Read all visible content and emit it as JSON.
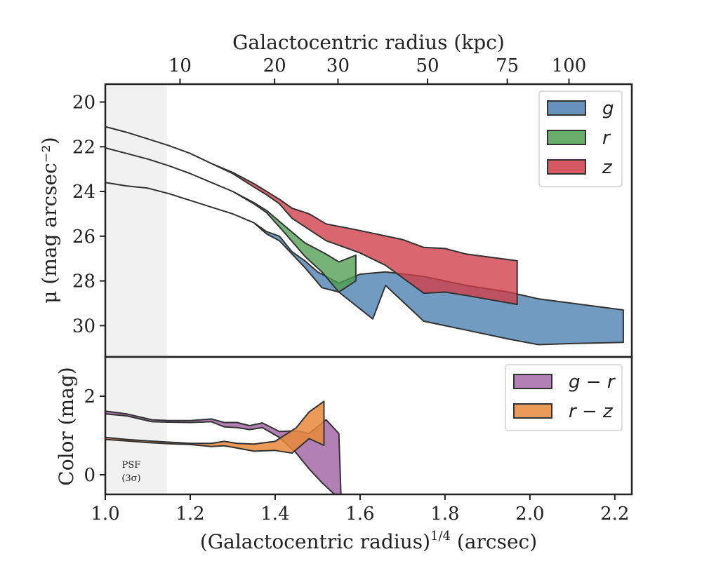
{
  "chart_data": [
    {
      "type": "area",
      "top_axis": {
        "label": "Galactocentric radius (kpc)",
        "ticks": [
          10,
          20,
          30,
          50,
          75,
          100
        ],
        "tick_labels": [
          "10",
          "20",
          "30",
          "50",
          "75",
          "100"
        ]
      },
      "xlim": [
        1.0,
        2.24
      ],
      "ylabel": "μ (mag arcsec⁻²)",
      "ylim": [
        31.4,
        19.2
      ],
      "y_inverted": true,
      "yticks": [
        20,
        22,
        24,
        26,
        28,
        30
      ],
      "shaded_region": {
        "x": [
          1.0,
          1.145
        ],
        "color": "#f1f1f1"
      },
      "legend": {
        "placement": "top-right"
      },
      "series": [
        {
          "name": "g",
          "color": "#4a7fb0",
          "upper": [
            [
              1.0,
              23.6
            ],
            [
              1.05,
              23.75
            ],
            [
              1.1,
              23.85
            ],
            [
              1.15,
              24.1
            ],
            [
              1.2,
              24.4
            ],
            [
              1.25,
              24.7
            ],
            [
              1.3,
              25.0
            ],
            [
              1.35,
              25.4
            ],
            [
              1.38,
              25.8
            ],
            [
              1.41,
              26.0
            ],
            [
              1.44,
              26.7
            ],
            [
              1.47,
              27.1
            ],
            [
              1.5,
              27.6
            ],
            [
              1.55,
              28.1
            ],
            [
              1.6,
              27.7
            ],
            [
              1.66,
              27.6
            ],
            [
              1.75,
              27.8
            ],
            [
              1.85,
              28.2
            ],
            [
              1.95,
              28.5
            ],
            [
              2.02,
              28.8
            ],
            [
              2.1,
              29.0
            ],
            [
              2.22,
              29.3
            ]
          ],
          "lower": [
            [
              1.0,
              23.6
            ],
            [
              1.05,
              23.75
            ],
            [
              1.1,
              23.85
            ],
            [
              1.15,
              24.1
            ],
            [
              1.2,
              24.4
            ],
            [
              1.25,
              24.7
            ],
            [
              1.3,
              25.0
            ],
            [
              1.35,
              25.4
            ],
            [
              1.38,
              25.9
            ],
            [
              1.41,
              26.2
            ],
            [
              1.44,
              26.8
            ],
            [
              1.47,
              27.4
            ],
            [
              1.51,
              28.3
            ],
            [
              1.55,
              28.5
            ],
            [
              1.63,
              29.7
            ],
            [
              1.66,
              28.2
            ],
            [
              1.75,
              29.8
            ],
            [
              1.85,
              30.2
            ],
            [
              1.95,
              30.6
            ],
            [
              2.02,
              30.85
            ],
            [
              2.1,
              30.8
            ],
            [
              2.22,
              30.75
            ]
          ]
        },
        {
          "name": "r",
          "color": "#4e9d4f",
          "upper": [
            [
              1.0,
              22.05
            ],
            [
              1.05,
              22.3
            ],
            [
              1.1,
              22.55
            ],
            [
              1.15,
              22.85
            ],
            [
              1.2,
              23.2
            ],
            [
              1.25,
              23.6
            ],
            [
              1.3,
              24.0
            ],
            [
              1.35,
              24.5
            ],
            [
              1.38,
              24.85
            ],
            [
              1.42,
              25.5
            ],
            [
              1.47,
              26.3
            ],
            [
              1.52,
              26.8
            ],
            [
              1.55,
              27.15
            ],
            [
              1.59,
              26.85
            ]
          ],
          "lower": [
            [
              1.0,
              22.05
            ],
            [
              1.05,
              22.3
            ],
            [
              1.1,
              22.55
            ],
            [
              1.15,
              22.85
            ],
            [
              1.2,
              23.2
            ],
            [
              1.25,
              23.6
            ],
            [
              1.3,
              24.0
            ],
            [
              1.35,
              24.55
            ],
            [
              1.38,
              24.95
            ],
            [
              1.42,
              25.8
            ],
            [
              1.47,
              26.9
            ],
            [
              1.51,
              27.6
            ],
            [
              1.55,
              28.5
            ],
            [
              1.59,
              28.0
            ]
          ]
        },
        {
          "name": "z",
          "color": "#cf3c46",
          "upper": [
            [
              1.0,
              21.1
            ],
            [
              1.05,
              21.35
            ],
            [
              1.1,
              21.65
            ],
            [
              1.15,
              21.95
            ],
            [
              1.2,
              22.3
            ],
            [
              1.25,
              22.75
            ],
            [
              1.3,
              23.15
            ],
            [
              1.35,
              23.65
            ],
            [
              1.38,
              24.0
            ],
            [
              1.41,
              24.35
            ],
            [
              1.44,
              24.75
            ],
            [
              1.48,
              25.0
            ],
            [
              1.52,
              25.45
            ],
            [
              1.6,
              25.75
            ],
            [
              1.7,
              26.15
            ],
            [
              1.75,
              26.5
            ],
            [
              1.8,
              26.55
            ],
            [
              1.85,
              26.8
            ],
            [
              1.97,
              27.1
            ]
          ],
          "lower": [
            [
              1.0,
              21.1
            ],
            [
              1.05,
              21.35
            ],
            [
              1.1,
              21.65
            ],
            [
              1.15,
              21.95
            ],
            [
              1.2,
              22.3
            ],
            [
              1.25,
              22.75
            ],
            [
              1.3,
              23.2
            ],
            [
              1.35,
              23.8
            ],
            [
              1.38,
              24.15
            ],
            [
              1.41,
              24.55
            ],
            [
              1.44,
              25.2
            ],
            [
              1.48,
              25.7
            ],
            [
              1.52,
              26.2
            ],
            [
              1.6,
              26.75
            ],
            [
              1.66,
              27.3
            ],
            [
              1.75,
              28.55
            ],
            [
              1.8,
              28.5
            ],
            [
              1.85,
              28.65
            ],
            [
              1.97,
              29.05
            ]
          ]
        }
      ]
    },
    {
      "type": "area",
      "xlabel": "(Galactocentric radius)",
      "xlabel_sup": "1/4",
      "xlabel_suffix": " (arcsec)",
      "ylabel": "Color (mag)",
      "xlim": [
        1.0,
        2.24
      ],
      "ylim": [
        -0.5,
        3.0
      ],
      "xticks": [
        1.0,
        1.2,
        1.4,
        1.6,
        1.8,
        2.0,
        2.2
      ],
      "yticks": [
        0,
        2
      ],
      "shaded_region": {
        "x": [
          1.0,
          1.145
        ],
        "color": "#f1f1f1"
      },
      "annotation": {
        "line1": "PSF",
        "line2": "(3σ)"
      },
      "legend": {
        "placement": "top-right"
      },
      "series": [
        {
          "name": "g − r",
          "color": "#a46aa8",
          "upper": [
            [
              1.0,
              1.62
            ],
            [
              1.05,
              1.55
            ],
            [
              1.11,
              1.4
            ],
            [
              1.15,
              1.38
            ],
            [
              1.2,
              1.38
            ],
            [
              1.25,
              1.42
            ],
            [
              1.28,
              1.33
            ],
            [
              1.31,
              1.33
            ],
            [
              1.34,
              1.25
            ],
            [
              1.37,
              1.32
            ],
            [
              1.41,
              1.1
            ],
            [
              1.45,
              1.12
            ],
            [
              1.48,
              1.05
            ],
            [
              1.52,
              1.4
            ],
            [
              1.55,
              1.05
            ],
            [
              1.555,
              -0.5
            ]
          ],
          "lower": [
            [
              1.0,
              1.55
            ],
            [
              1.05,
              1.5
            ],
            [
              1.11,
              1.35
            ],
            [
              1.15,
              1.34
            ],
            [
              1.2,
              1.33
            ],
            [
              1.25,
              1.35
            ],
            [
              1.28,
              1.22
            ],
            [
              1.31,
              1.2
            ],
            [
              1.34,
              1.15
            ],
            [
              1.37,
              1.2
            ],
            [
              1.41,
              0.95
            ],
            [
              1.45,
              0.55
            ],
            [
              1.48,
              0.15
            ],
            [
              1.51,
              -0.2
            ],
            [
              1.54,
              -0.5
            ],
            [
              1.555,
              -0.5
            ]
          ]
        },
        {
          "name": "r − z",
          "color": "#e8893a",
          "upper": [
            [
              1.0,
              0.95
            ],
            [
              1.05,
              0.9
            ],
            [
              1.1,
              0.86
            ],
            [
              1.15,
              0.83
            ],
            [
              1.2,
              0.8
            ],
            [
              1.25,
              0.8
            ],
            [
              1.28,
              0.85
            ],
            [
              1.31,
              0.8
            ],
            [
              1.35,
              0.78
            ],
            [
              1.4,
              0.85
            ],
            [
              1.45,
              1.2
            ],
            [
              1.48,
              1.6
            ],
            [
              1.515,
              1.87
            ]
          ],
          "lower": [
            [
              1.0,
              0.9
            ],
            [
              1.05,
              0.86
            ],
            [
              1.1,
              0.82
            ],
            [
              1.15,
              0.79
            ],
            [
              1.2,
              0.77
            ],
            [
              1.25,
              0.72
            ],
            [
              1.28,
              0.74
            ],
            [
              1.31,
              0.68
            ],
            [
              1.35,
              0.6
            ],
            [
              1.4,
              0.62
            ],
            [
              1.44,
              0.55
            ],
            [
              1.48,
              0.92
            ],
            [
              1.515,
              0.75
            ]
          ]
        }
      ]
    }
  ]
}
